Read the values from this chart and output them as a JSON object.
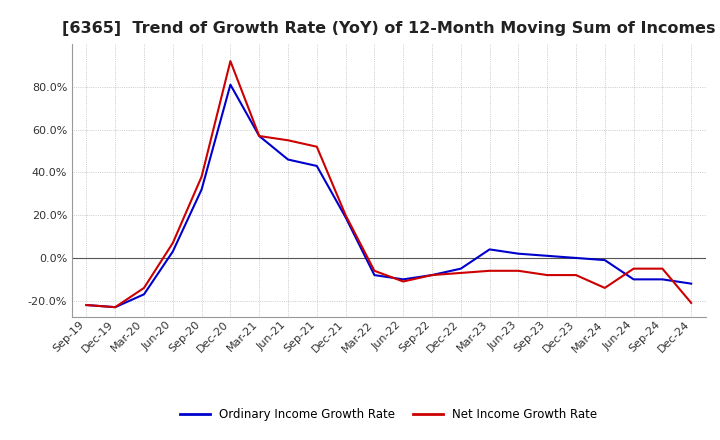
{
  "title": "[6365]  Trend of Growth Rate (YoY) of 12-Month Moving Sum of Incomes",
  "title_fontsize": 11.5,
  "background_color": "#ffffff",
  "grid_color": "#aaaaaa",
  "legend_labels": [
    "Ordinary Income Growth Rate",
    "Net Income Growth Rate"
  ],
  "line_colors": [
    "#0000cc",
    "#cc0000"
  ],
  "x_labels": [
    "Sep-19",
    "Dec-19",
    "Mar-20",
    "Jun-20",
    "Sep-20",
    "Dec-20",
    "Mar-21",
    "Jun-21",
    "Sep-21",
    "Dec-21",
    "Mar-22",
    "Jun-22",
    "Sep-22",
    "Dec-22",
    "Mar-23",
    "Jun-23",
    "Sep-23",
    "Dec-23",
    "Mar-24",
    "Jun-24",
    "Sep-24",
    "Dec-24"
  ],
  "ylim": [
    -0.275,
    1.0
  ],
  "yticks": [
    -0.2,
    0.0,
    0.2,
    0.4,
    0.6,
    0.8
  ],
  "ordinary_income": [
    -0.22,
    -0.23,
    -0.17,
    0.03,
    0.32,
    0.81,
    0.57,
    0.46,
    0.43,
    0.19,
    -0.08,
    -0.1,
    -0.08,
    -0.05,
    0.04,
    0.02,
    0.01,
    0.0,
    -0.01,
    -0.1,
    -0.1,
    -0.12
  ],
  "net_income": [
    -0.22,
    -0.23,
    -0.14,
    0.07,
    0.38,
    0.92,
    0.57,
    0.55,
    0.52,
    0.2,
    -0.06,
    -0.11,
    -0.08,
    -0.07,
    -0.06,
    -0.06,
    -0.08,
    -0.08,
    -0.14,
    -0.05,
    -0.05,
    -0.21
  ]
}
